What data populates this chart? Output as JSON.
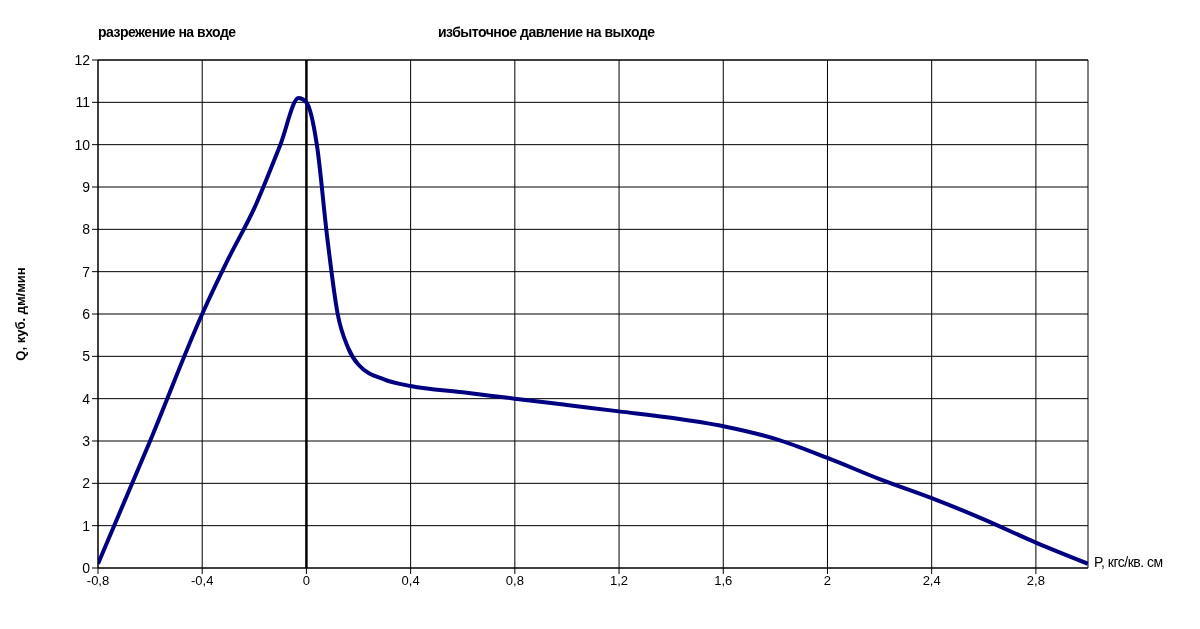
{
  "chart_data": {
    "type": "line",
    "xlabel": "P, кгс/кв. см",
    "ylabel": "Q, куб. дм/мин",
    "annotations": [
      "разрежение на входе",
      "избыточное давление на выходе"
    ],
    "x": [
      -0.8,
      -0.6,
      -0.4,
      -0.3,
      -0.2,
      -0.1,
      -0.03,
      0,
      0.04,
      0.08,
      0.12,
      0.16,
      0.2,
      0.3,
      0.4,
      0.6,
      0.8,
      1.0,
      1.2,
      1.4,
      1.6,
      1.8,
      2.0,
      2.2,
      2.4,
      2.6,
      2.8,
      3.0
    ],
    "series": [
      {
        "color": "#000080",
        "values": [
          0.1,
          3.0,
          6.0,
          7.3,
          8.5,
          10.0,
          11.1,
          11.0,
          10.0,
          7.8,
          6.0,
          5.2,
          4.8,
          4.45,
          4.3,
          4.15,
          4.0,
          3.85,
          3.7,
          3.55,
          3.35,
          3.05,
          2.6,
          2.1,
          1.65,
          1.15,
          0.6,
          0.1
        ]
      }
    ],
    "xlim": [
      -0.8,
      3.0
    ],
    "xticks": [
      {
        "value": -0.8,
        "label": "-0,8"
      },
      {
        "value": -0.4,
        "label": "-0,4"
      },
      0,
      {
        "value": 0.4,
        "label": "0,4"
      },
      {
        "value": 0.8,
        "label": "0,8"
      },
      {
        "value": 1.2,
        "label": "1,2"
      },
      {
        "value": 1.6,
        "label": "1,6"
      },
      2,
      {
        "value": 2.4,
        "label": "2,4"
      },
      {
        "value": 2.8,
        "label": "2,8"
      }
    ],
    "ylim": [
      0,
      12
    ],
    "yticks": [
      0,
      1,
      2,
      3,
      4,
      5,
      6,
      7,
      8,
      9,
      10,
      11,
      12
    ],
    "ref_lines": [
      {
        "axis": "x",
        "value": 0,
        "color": "#000000"
      }
    ],
    "grid": true,
    "marker": "none",
    "line_style": "solid"
  }
}
